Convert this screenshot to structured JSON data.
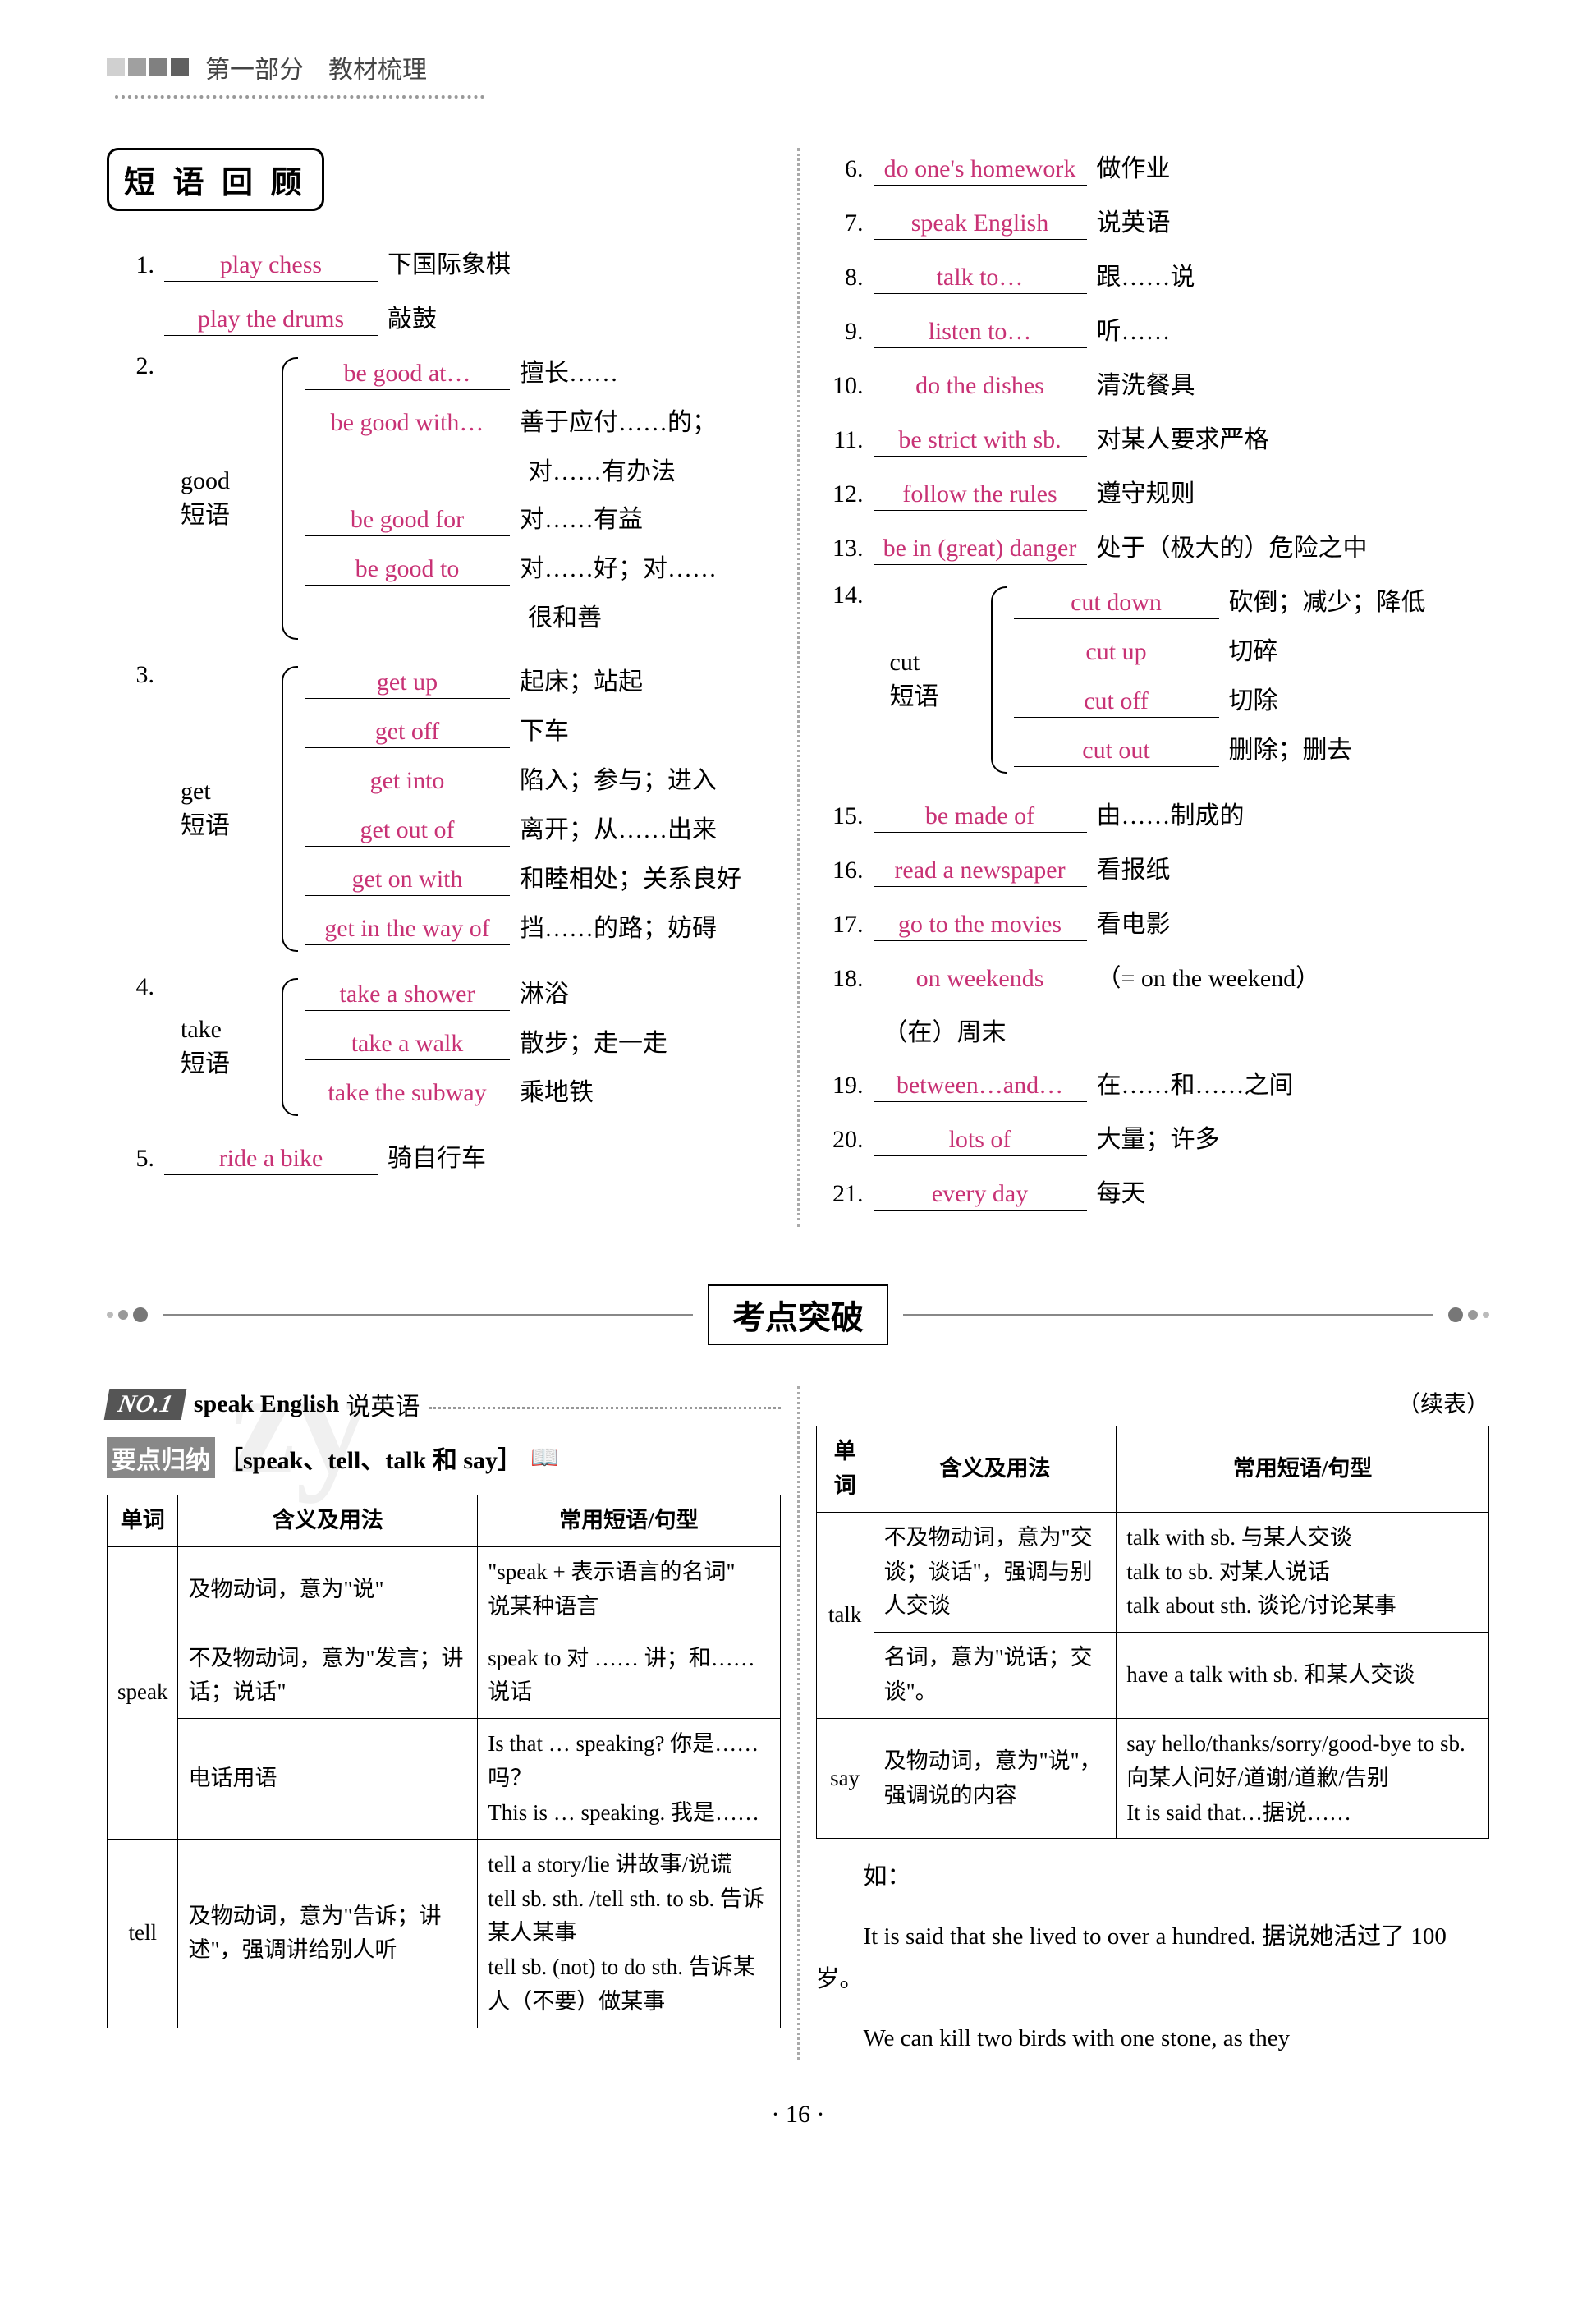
{
  "header": {
    "part": "第一部分　教材梳理"
  },
  "section_title": "短 语 回 顾",
  "phrases_left": [
    {
      "num": "1.",
      "answer": "play chess",
      "meaning": "下国际象棋"
    },
    {
      "num": "",
      "answer": "play the drums",
      "meaning": "敲鼓"
    }
  ],
  "group_good": {
    "num": "2.",
    "word": "good",
    "label": "短语",
    "items": [
      {
        "answer": "be good at…",
        "meaning": "擅长……"
      },
      {
        "answer": "be good with…",
        "meaning": "善于应付……的；"
      },
      {
        "answer": "",
        "meaning": "对……有办法"
      },
      {
        "answer": "be good for",
        "meaning": "对……有益"
      },
      {
        "answer": "be good to",
        "meaning": "对……好；对……"
      },
      {
        "answer": "",
        "meaning": "很和善"
      }
    ]
  },
  "group_get": {
    "num": "3.",
    "word": "get",
    "label": "短语",
    "items": [
      {
        "answer": "get up",
        "meaning": "起床；站起"
      },
      {
        "answer": "get off",
        "meaning": "下车"
      },
      {
        "answer": "get into",
        "meaning": "陷入；参与；进入"
      },
      {
        "answer": "get out of",
        "meaning": "离开；从……出来"
      },
      {
        "answer": "get on with",
        "meaning": "和睦相处；关系良好"
      },
      {
        "answer": "get in the way of",
        "meaning": "挡……的路；妨碍"
      }
    ]
  },
  "group_take": {
    "num": "4.",
    "word": "take",
    "label": "短语",
    "items": [
      {
        "answer": "take a shower",
        "meaning": "淋浴"
      },
      {
        "answer": "take a walk",
        "meaning": "散步；走一走"
      },
      {
        "answer": "take the subway",
        "meaning": "乘地铁"
      }
    ]
  },
  "phrase5": {
    "num": "5.",
    "answer": "ride a bike",
    "meaning": "骑自行车"
  },
  "phrases_right": [
    {
      "num": "6.",
      "answer": "do one's homework",
      "meaning": "做作业"
    },
    {
      "num": "7.",
      "answer": "speak English",
      "meaning": "说英语"
    },
    {
      "num": "8.",
      "answer": "talk to…",
      "meaning": "跟……说"
    },
    {
      "num": "9.",
      "answer": "listen to…",
      "meaning": "听……"
    },
    {
      "num": "10.",
      "answer": "do the dishes",
      "meaning": "清洗餐具"
    },
    {
      "num": "11.",
      "answer": "be strict with sb.",
      "meaning": "对某人要求严格"
    },
    {
      "num": "12.",
      "answer": "follow the rules",
      "meaning": "遵守规则"
    },
    {
      "num": "13.",
      "answer": "be in (great) danger",
      "meaning": "处于（极大的）危险之中"
    }
  ],
  "group_cut": {
    "num": "14.",
    "word": "cut",
    "label": "短语",
    "items": [
      {
        "answer": "cut down",
        "meaning": "砍倒；减少；降低"
      },
      {
        "answer": "cut up",
        "meaning": "切碎"
      },
      {
        "answer": "cut off",
        "meaning": "切除"
      },
      {
        "answer": "cut out",
        "meaning": "删除；删去"
      }
    ]
  },
  "phrases_right2": [
    {
      "num": "15.",
      "answer": "be made of",
      "meaning": "由……制成的"
    },
    {
      "num": "16.",
      "answer": "read a newspaper",
      "meaning": "看报纸"
    },
    {
      "num": "17.",
      "answer": "go to the movies",
      "meaning": "看电影"
    },
    {
      "num": "18.",
      "answer": "on weekends",
      "meaning": "（= on the weekend）"
    },
    {
      "num": "",
      "answer": "",
      "meaning": "（在）周末"
    },
    {
      "num": "19.",
      "answer": "between…and…",
      "meaning": "在……和……之间"
    },
    {
      "num": "20.",
      "answer": "lots of",
      "meaning": "大量；许多"
    },
    {
      "num": "21.",
      "answer": "every day",
      "meaning": "每天"
    }
  ],
  "divider_title": "考点突破",
  "no1": {
    "tag": "NO.1",
    "en": "speak English",
    "zh": "说英语"
  },
  "yaodian": {
    "label": "要点归纳",
    "bracket": "［speak、tell、talk 和 say］"
  },
  "continued": "（续表）",
  "table1": {
    "headers": [
      "单词",
      "含义及用法",
      "常用短语/句型"
    ],
    "rows": [
      {
        "word": "speak",
        "usage": "及物动词，意为\"说\"",
        "pattern": "\"speak + 表示语言的名词\"　说某种语言"
      },
      {
        "word": "",
        "usage": "不及物动词，意为\"发言；讲话；说话\"",
        "pattern": "speak to 对 …… 讲；和……说话"
      },
      {
        "word": "",
        "usage": "电话用语",
        "pattern": "Is that … speaking? 你是……吗？\nThis is … speaking. 我是……"
      },
      {
        "word": "tell",
        "usage": "及物动词，意为\"告诉；讲述\"，强调讲给别人听",
        "pattern": "tell a story/lie 讲故事/说谎\ntell sb. sth. /tell sth. to sb. 告诉某人某事\ntell sb. (not) to do sth. 告诉某人（不要）做某事"
      }
    ]
  },
  "table2": {
    "headers": [
      "单词",
      "含义及用法",
      "常用短语/句型"
    ],
    "rows": [
      {
        "word": "talk",
        "usage": "不及物动词，意为\"交谈；谈话\"，强调与别人交谈",
        "pattern": "talk with sb. 与某人交谈\ntalk to sb. 对某人说话\ntalk about sth. 谈论/讨论某事"
      },
      {
        "word": "",
        "usage": "名词，意为\"说话；交谈\"。",
        "pattern": "have a talk with sb. 和某人交谈"
      },
      {
        "word": "say",
        "usage": "及物动词，意为\"说\"，强调说的内容",
        "pattern": "say hello/thanks/sorry/good-bye to sb. 向某人问好/道谢/道歉/告别\nIt is said that…据说……"
      }
    ]
  },
  "example_label": "如：",
  "example1_en": "It is said that she lived to over a hundred.",
  "example1_zh": "据说她活过了 100 岁。",
  "example2_en": "We can kill two birds with one stone, as they",
  "page_num": "· 16 ·",
  "colors": {
    "answer": "#c83275",
    "header_gray": "#888888"
  }
}
